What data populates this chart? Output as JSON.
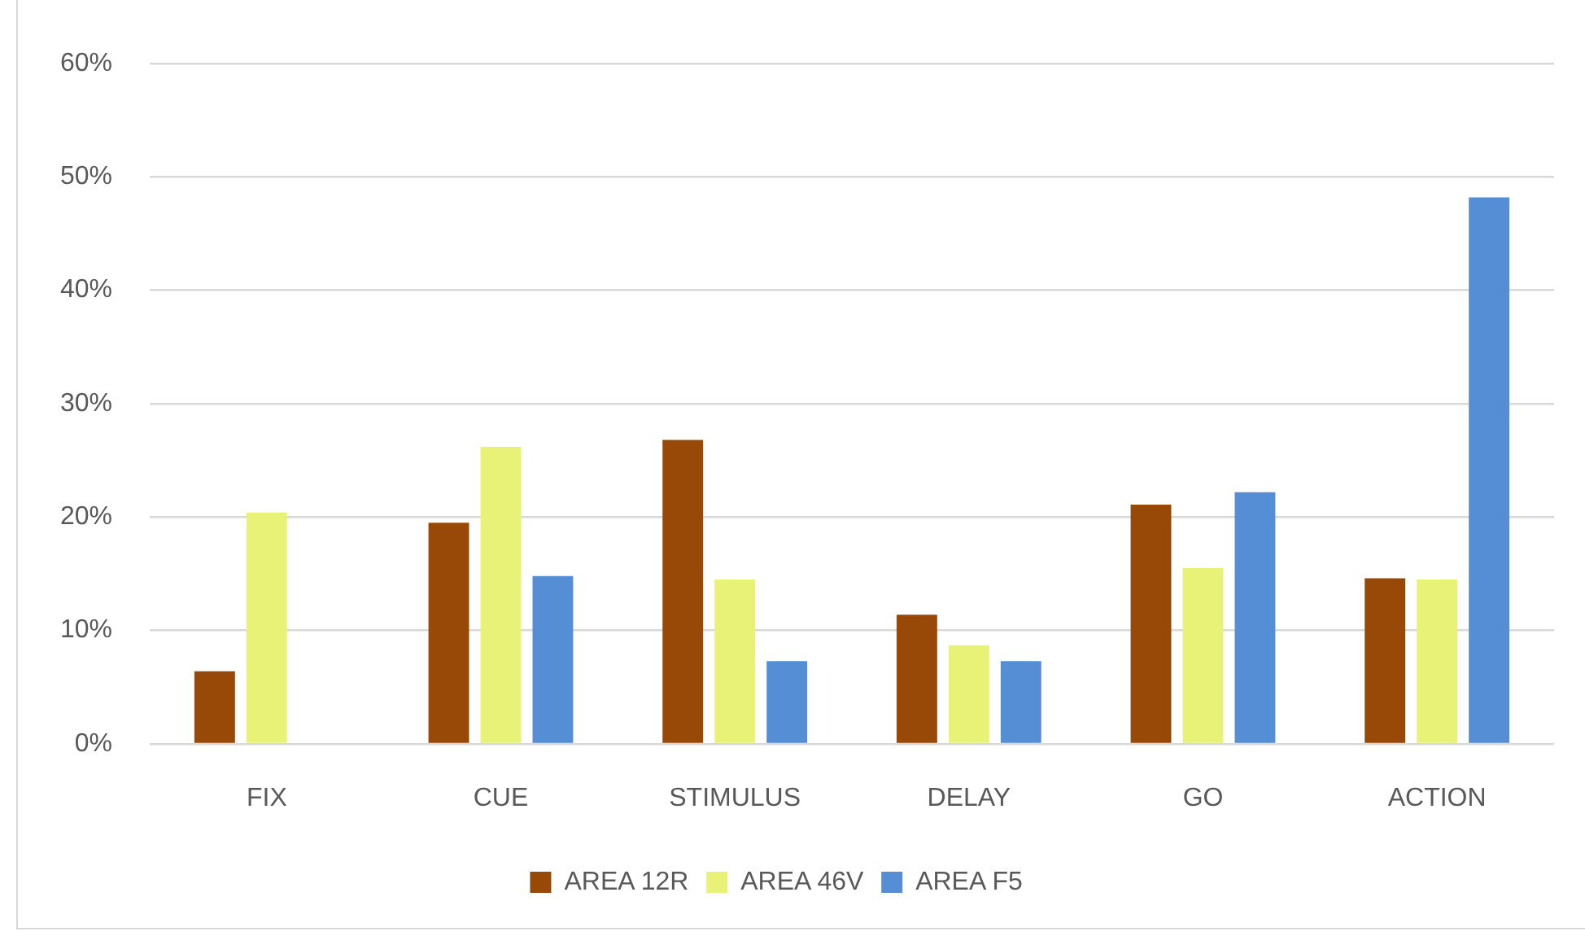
{
  "chart_data": {
    "type": "bar",
    "categories": [
      "FIX",
      "CUE",
      "STIMULUS",
      "DELAY",
      "GO",
      "ACTION"
    ],
    "series": [
      {
        "name": "AREA 12R",
        "color": "#984807",
        "values": [
          6.4,
          19.5,
          26.8,
          11.4,
          21.1,
          14.6
        ]
      },
      {
        "name": "AREA 46V",
        "color": "#e8f276",
        "values": [
          20.4,
          26.2,
          14.5,
          8.7,
          15.5,
          14.5
        ]
      },
      {
        "name": "AREA F5",
        "color": "#558ed5",
        "values": [
          null,
          14.8,
          7.3,
          7.3,
          22.2,
          48.2
        ]
      }
    ],
    "ylim": [
      0,
      60
    ],
    "yticks": [
      {
        "value": 0,
        "label": "0%"
      },
      {
        "value": 10,
        "label": "10%"
      },
      {
        "value": 20,
        "label": "20%"
      },
      {
        "value": 30,
        "label": "30%"
      },
      {
        "value": 40,
        "label": "40%"
      },
      {
        "value": 50,
        "label": "50%"
      },
      {
        "value": 60,
        "label": "60%"
      }
    ],
    "grid": "y",
    "legend": "bottom"
  }
}
